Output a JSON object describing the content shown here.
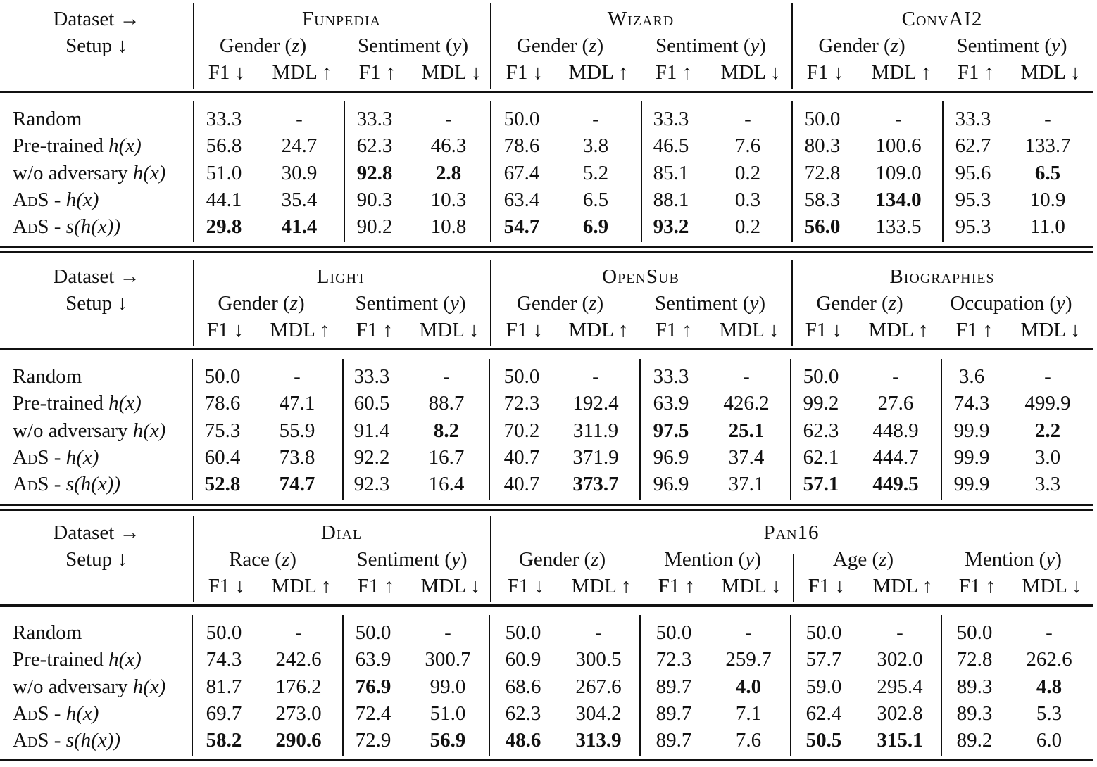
{
  "table": {
    "corner": {
      "dataset_label": "Dataset →",
      "setup_label": "Setup ↓"
    },
    "metric_headers": [
      "F1 ↓",
      "MDL ↑",
      "F1 ↑",
      "MDL ↓"
    ],
    "row_labels": [
      {
        "plain": "Random",
        "math": ""
      },
      {
        "plain": "Pre-trained ",
        "math": "h(x)"
      },
      {
        "plain": "w/o adversary ",
        "math": "h(x)"
      },
      {
        "plain": "AdS - ",
        "math": "h(x)"
      },
      {
        "plain": "AdS - ",
        "math": "s(h(x))"
      }
    ],
    "blocks": [
      {
        "datasets": [
          {
            "name": "Funpedia",
            "groups": [
              "Gender (z)",
              "Sentiment (y)"
            ],
            "rows": [
              [
                "33.3",
                "-",
                "33.3",
                "-"
              ],
              [
                "56.8",
                "24.7",
                "62.3",
                "46.3"
              ],
              [
                "51.0",
                "30.9",
                "92.8",
                "2.8"
              ],
              [
                "44.1",
                "35.4",
                "90.3",
                "10.3"
              ],
              [
                "29.8",
                "41.4",
                "90.2",
                "10.8"
              ]
            ],
            "bold": [
              [
                2,
                2
              ],
              [
                2,
                3
              ],
              [
                4,
                0
              ],
              [
                4,
                1
              ]
            ]
          },
          {
            "name": "Wizard",
            "groups": [
              "Gender (z)",
              "Sentiment (y)"
            ],
            "rows": [
              [
                "50.0",
                "-",
                "33.3",
                "-"
              ],
              [
                "78.6",
                "3.8",
                "46.5",
                "7.6"
              ],
              [
                "67.4",
                "5.2",
                "85.1",
                "0.2"
              ],
              [
                "63.4",
                "6.5",
                "88.1",
                "0.3"
              ],
              [
                "54.7",
                "6.9",
                "93.2",
                "0.2"
              ]
            ],
            "bold": [
              [
                4,
                0
              ],
              [
                4,
                1
              ],
              [
                4,
                2
              ]
            ]
          },
          {
            "name": "ConvAI2",
            "groups": [
              "Gender (z)",
              "Sentiment (y)"
            ],
            "rows": [
              [
                "50.0",
                "-",
                "33.3",
                "-"
              ],
              [
                "80.3",
                "100.6",
                "62.7",
                "133.7"
              ],
              [
                "72.8",
                "109.0",
                "95.6",
                "6.5"
              ],
              [
                "58.3",
                "134.0",
                "95.3",
                "10.9"
              ],
              [
                "56.0",
                "133.5",
                "95.3",
                "11.0"
              ]
            ],
            "bold": [
              [
                2,
                3
              ],
              [
                3,
                1
              ],
              [
                4,
                0
              ]
            ]
          }
        ]
      },
      {
        "datasets": [
          {
            "name": "Light",
            "groups": [
              "Gender (z)",
              "Sentiment (y)"
            ],
            "rows": [
              [
                "50.0",
                "-",
                "33.3",
                "-"
              ],
              [
                "78.6",
                "47.1",
                "60.5",
                "88.7"
              ],
              [
                "75.3",
                "55.9",
                "91.4",
                "8.2"
              ],
              [
                "60.4",
                "73.8",
                "92.2",
                "16.7"
              ],
              [
                "52.8",
                "74.7",
                "92.3",
                "16.4"
              ]
            ],
            "bold": [
              [
                2,
                3
              ],
              [
                4,
                0
              ],
              [
                4,
                1
              ]
            ]
          },
          {
            "name": "OpenSub",
            "groups": [
              "Gender (z)",
              "Sentiment (y)"
            ],
            "rows": [
              [
                "50.0",
                "-",
                "33.3",
                "-"
              ],
              [
                "72.3",
                "192.4",
                "63.9",
                "426.2"
              ],
              [
                "70.2",
                "311.9",
                "97.5",
                "25.1"
              ],
              [
                "40.7",
                "371.9",
                "96.9",
                "37.4"
              ],
              [
                "40.7",
                "373.7",
                "96.9",
                "37.1"
              ]
            ],
            "bold": [
              [
                2,
                2
              ],
              [
                2,
                3
              ],
              [
                4,
                1
              ]
            ]
          },
          {
            "name": "Biographies",
            "groups": [
              "Gender (z)",
              "Occupation (y)"
            ],
            "rows": [
              [
                "50.0",
                "-",
                "3.6",
                "-"
              ],
              [
                "99.2",
                "27.6",
                "74.3",
                "499.9"
              ],
              [
                "62.3",
                "448.9",
                "99.9",
                "2.2"
              ],
              [
                "62.1",
                "444.7",
                "99.9",
                "3.0"
              ],
              [
                "57.1",
                "449.5",
                "99.9",
                "3.3"
              ]
            ],
            "bold": [
              [
                2,
                3
              ],
              [
                4,
                0
              ],
              [
                4,
                1
              ]
            ]
          }
        ]
      },
      {
        "datasets": [
          {
            "name": "Dial",
            "groups": [
              "Race (z)",
              "Sentiment (y)"
            ],
            "rows": [
              [
                "50.0",
                "-",
                "50.0",
                "-"
              ],
              [
                "74.3",
                "242.6",
                "63.9",
                "300.7"
              ],
              [
                "81.7",
                "176.2",
                "76.9",
                "99.0"
              ],
              [
                "69.7",
                "273.0",
                "72.4",
                "51.0"
              ],
              [
                "58.2",
                "290.6",
                "72.9",
                "56.9"
              ]
            ],
            "bold": [
              [
                2,
                2
              ],
              [
                4,
                0
              ],
              [
                4,
                1
              ],
              [
                4,
                3
              ]
            ]
          },
          {
            "name": "Pan16",
            "name_span": 2,
            "groups": [
              "Gender (z)",
              "Mention (y)"
            ],
            "rows": [
              [
                "50.0",
                "-",
                "50.0",
                "-"
              ],
              [
                "60.9",
                "300.5",
                "72.3",
                "259.7"
              ],
              [
                "68.6",
                "267.6",
                "89.7",
                "4.0"
              ],
              [
                "62.3",
                "304.2",
                "89.7",
                "7.1"
              ],
              [
                "48.6",
                "313.9",
                "89.7",
                "7.6"
              ]
            ],
            "bold": [
              [
                2,
                3
              ],
              [
                4,
                0
              ],
              [
                4,
                1
              ]
            ]
          },
          {
            "name": "",
            "groups": [
              "Age (z)",
              "Mention (y)"
            ],
            "rows": [
              [
                "50.0",
                "-",
                "50.0",
                "-"
              ],
              [
                "57.7",
                "302.0",
                "72.8",
                "262.6"
              ],
              [
                "59.0",
                "295.4",
                "89.3",
                "4.8"
              ],
              [
                "62.4",
                "302.8",
                "89.3",
                "5.3"
              ],
              [
                "50.5",
                "315.1",
                "89.2",
                "6.0"
              ]
            ],
            "bold": [
              [
                2,
                3
              ],
              [
                4,
                0
              ],
              [
                4,
                1
              ]
            ]
          }
        ]
      }
    ]
  }
}
